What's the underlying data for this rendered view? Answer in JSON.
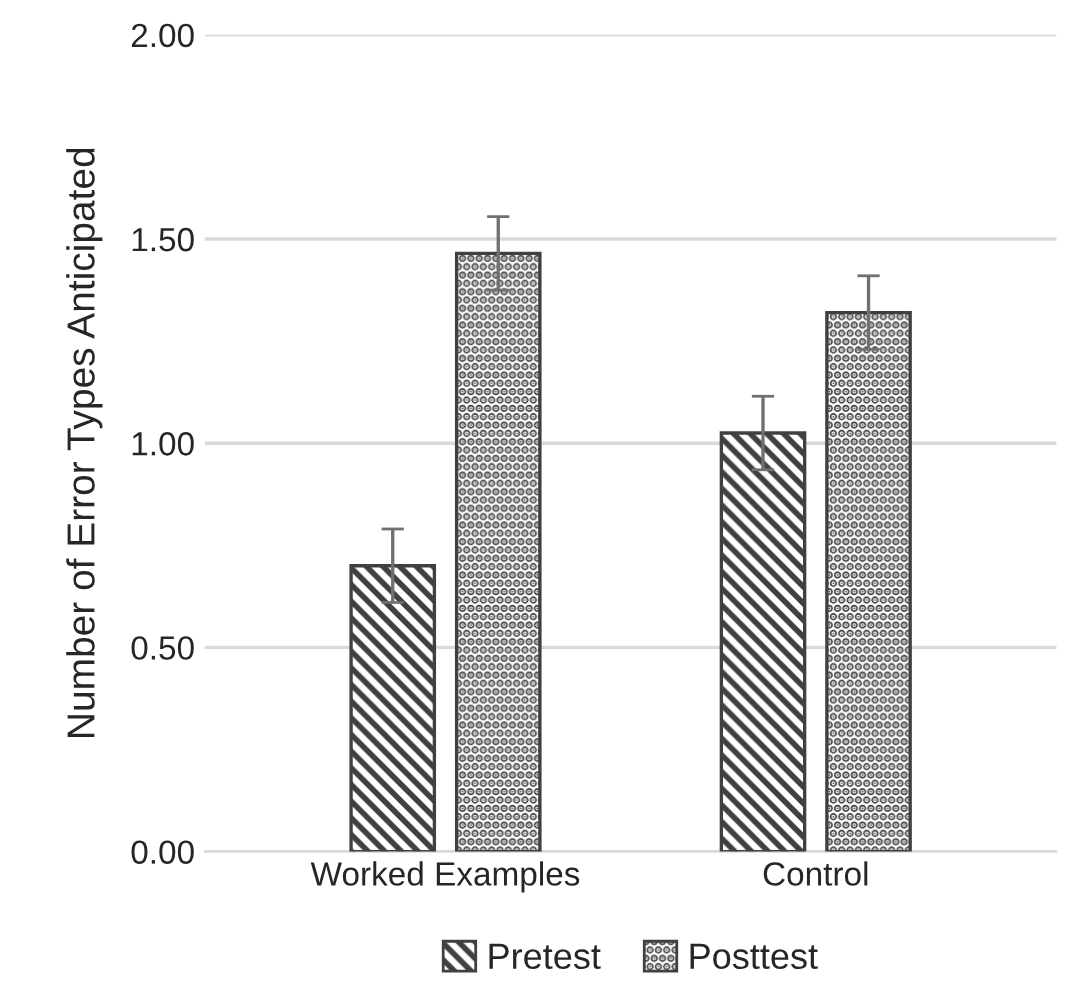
{
  "chart_data": {
    "type": "bar",
    "ylabel": "Number of Error Types Anticipated",
    "categories": [
      "Worked Examples",
      "Control"
    ],
    "series": [
      {
        "name": "Pretest",
        "color": "#404040",
        "values": [
          0.7,
          1.025
        ],
        "errors": [
          0.09,
          0.09
        ]
      },
      {
        "name": "Posttest",
        "color": "#404040",
        "values": [
          1.465,
          1.32
        ],
        "errors": [
          0.09,
          0.09
        ]
      }
    ],
    "ylim": [
      0,
      2
    ],
    "yticks": [
      {
        "value": 0,
        "label": "0.00"
      },
      {
        "value": 0.5,
        "label": "0.50"
      },
      {
        "value": 1,
        "label": "1.00"
      },
      {
        "value": 1.5,
        "label": "1.50"
      },
      {
        "value": 2,
        "label": "2.00"
      }
    ],
    "grid": "y",
    "legend": "bottom"
  }
}
